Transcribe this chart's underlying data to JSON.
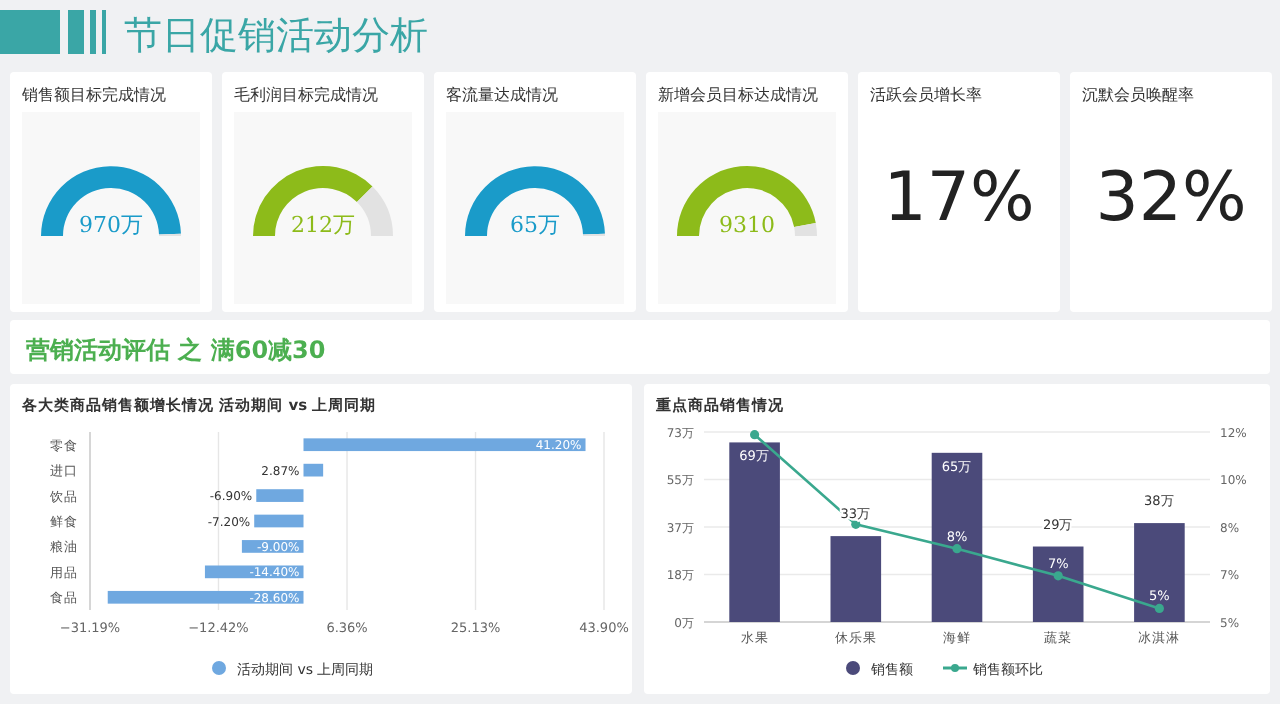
{
  "chart_data": [
    {
      "type": "other",
      "title": "节日促销活动分析"
    },
    {
      "type": "donut",
      "title": "销售额目标完成情况",
      "categories": [
        null,
        null
      ],
      "values": [
        99,
        1
      ],
      "colors": [
        "#1a9bc9",
        "#e2e2e2"
      ],
      "annotations": [
        "970万"
      ]
    },
    {
      "type": "donut",
      "title": "毛利润目标完成情况",
      "categories": [
        null,
        null
      ],
      "values": [
        75,
        25
      ],
      "colors": [
        "#8dbb1a",
        "#e2e2e2"
      ],
      "annotations": [
        "212万"
      ]
    },
    {
      "type": "donut",
      "title": "客流量达成情况",
      "categories": [
        null,
        null
      ],
      "values": [
        99,
        1
      ],
      "colors": [
        "#1a9bc9",
        "#e2e2e2"
      ],
      "annotations": [
        "65万"
      ]
    },
    {
      "type": "donut",
      "title": "新增会员目标达成情况",
      "categories": [
        null,
        null
      ],
      "values": [
        94,
        6
      ],
      "colors": [
        "#8dbb1a",
        "#e2e2e2"
      ],
      "annotations": [
        "9310"
      ]
    },
    {
      "type": "other",
      "title": "活跃会员增长率",
      "annotations": [
        "17%"
      ]
    },
    {
      "type": "other",
      "title": "沉默会员唤醒率",
      "annotations": [
        "32%"
      ]
    },
    {
      "type": "other",
      "title": "营销活动评估 之 满60减30"
    },
    {
      "type": "bar",
      "orientation": "horizontal",
      "title": "各大类商品销售额增长情况 活动期间 vs 上周同期",
      "categories": [
        "零食",
        "进口",
        "饮品",
        "鲜食",
        "粮油",
        "用品",
        "食品"
      ],
      "series": [
        {
          "name": "活动期间 vs 上周同期",
          "color": "#6fa8e0",
          "values": [
            41.2,
            2.87,
            -6.9,
            -7.2,
            -9.0,
            -14.4,
            -28.6
          ],
          "value_labels": [
            "41.20%",
            "2.87%",
            "-6.90%",
            "-7.20%",
            "-9.00%",
            "-14.40%",
            "-28.60%"
          ]
        }
      ],
      "xlim": [
        -31.19,
        43.9
      ],
      "xticks": [
        {
          "value": -31.19,
          "label": "−31.19%"
        },
        {
          "value": -12.42,
          "label": "−12.42%"
        },
        {
          "value": 6.36,
          "label": "6.36%"
        },
        {
          "value": 25.13,
          "label": "25.13%"
        },
        {
          "value": 43.9,
          "label": "43.90%"
        }
      ],
      "grid": "x",
      "legend": "bottom"
    },
    {
      "type": "bar",
      "title": "重点商品销售情况",
      "categories": [
        "水果",
        "休乐果",
        "海鲜",
        "蔬菜",
        "冰淇淋"
      ],
      "series": [
        {
          "name": "销售额",
          "type": "bar",
          "color": "#4b4a7a",
          "values": [
            69,
            33,
            65,
            29,
            38
          ],
          "value_labels": [
            "69万",
            "33万",
            "65万",
            "29万",
            "38万"
          ]
        },
        {
          "name": "销售额环比",
          "type": "line",
          "axis": "y2",
          "color": "#3aa88e",
          "values": [
            11.8,
            8.5,
            7.6,
            6.6,
            5.4
          ],
          "value_labels": [
            null,
            null,
            "8%",
            "7%",
            "5%"
          ]
        }
      ],
      "ylim": [
        0,
        73
      ],
      "yticks": [
        {
          "value": 0,
          "label": "0万"
        },
        {
          "value": 18.25,
          "label": "18万"
        },
        {
          "value": 36.5,
          "label": "37万"
        },
        {
          "value": 54.75,
          "label": "55万"
        },
        {
          "value": 73,
          "label": "73万"
        }
      ],
      "y2lim": [
        4.9,
        11.9
      ],
      "y2ticks": [
        {
          "value": 4.9,
          "label": "5%"
        },
        {
          "value": 6.65,
          "label": "7%"
        },
        {
          "value": 8.4,
          "label": "8%"
        },
        {
          "value": 10.15,
          "label": "10%"
        },
        {
          "value": 11.9,
          "label": "12%"
        }
      ],
      "grid": "y",
      "legend": "bottom",
      "marker": "circle"
    }
  ]
}
